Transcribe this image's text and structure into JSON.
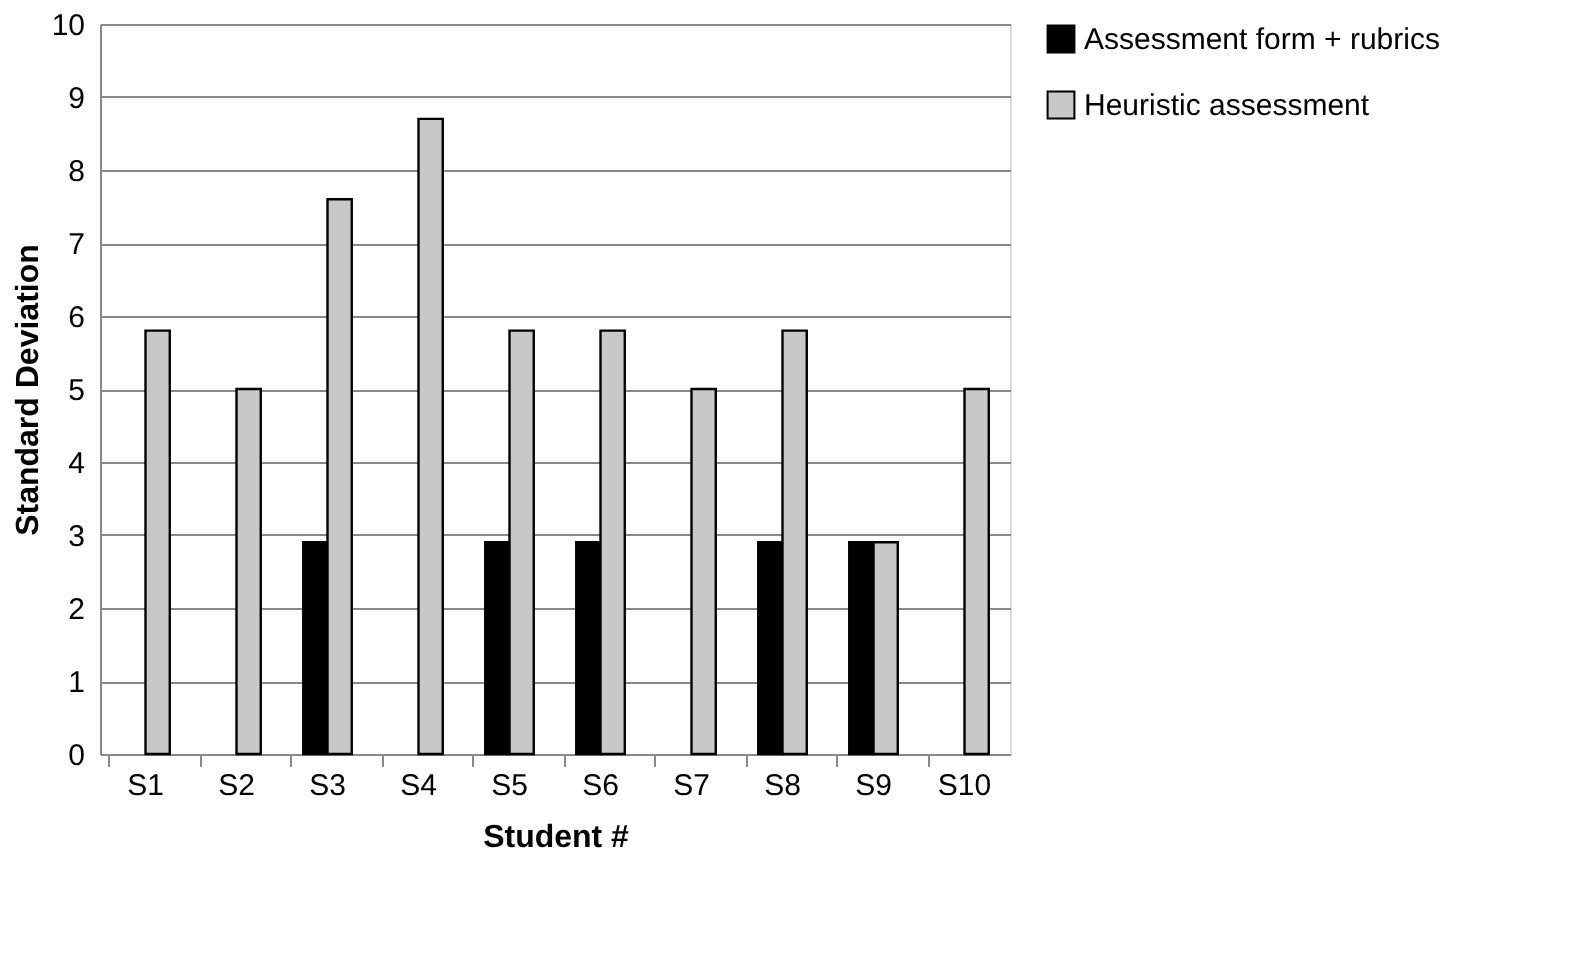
{
  "chart_data": {
    "type": "bar",
    "xlabel": "Student #",
    "ylabel": "Standard Deviation",
    "categories": [
      "S1",
      "S2",
      "S3",
      "S4",
      "S5",
      "S6",
      "S7",
      "S8",
      "S9",
      "S10"
    ],
    "series": [
      {
        "name": "Assessment form + rubrics",
        "color": "#000000",
        "values": [
          null,
          null,
          2.9,
          null,
          2.9,
          2.9,
          null,
          2.9,
          2.9,
          null
        ]
      },
      {
        "name": "Heuristic assessment",
        "color": "#c8c8c8",
        "values": [
          5.8,
          5.0,
          7.6,
          8.7,
          5.8,
          5.8,
          5.0,
          5.8,
          2.9,
          5.0
        ]
      }
    ],
    "ylim": [
      0,
      10
    ],
    "yticks": [
      0,
      1,
      2,
      3,
      4,
      5,
      6,
      7,
      8,
      9,
      10
    ],
    "grid": "y",
    "legend": "right"
  }
}
